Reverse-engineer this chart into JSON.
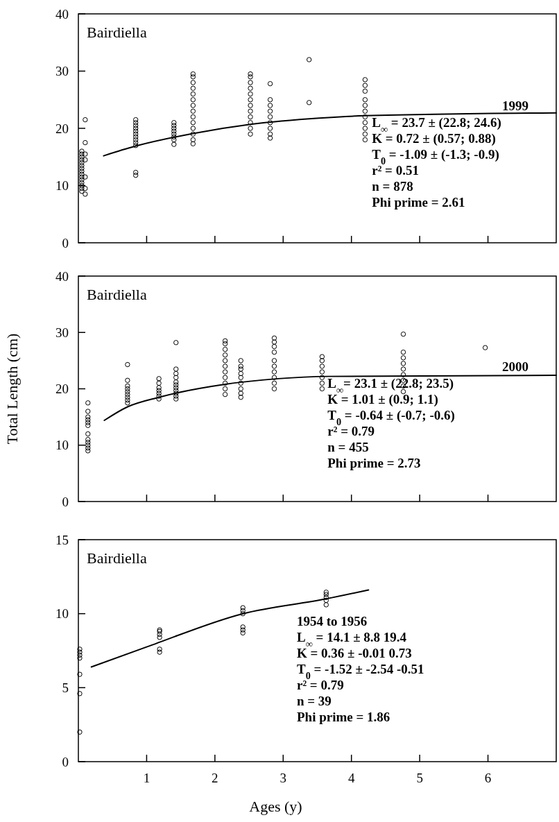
{
  "chart_data": [
    {
      "type": "scatter",
      "title": "Bairdiella",
      "xlim": [
        0,
        7
      ],
      "xticks": [
        {
          "value": 1,
          "label": null
        },
        {
          "value": 2,
          "label": null
        },
        {
          "value": 3,
          "label": null
        },
        {
          "value": 4,
          "label": null
        },
        {
          "value": 5,
          "label": null
        },
        {
          "value": 6,
          "label": null
        }
      ],
      "ylim": [
        0,
        40
      ],
      "yticks": [
        0,
        10,
        20,
        30,
        40
      ],
      "tick_labels": "y",
      "grid": false,
      "annotations": [
        "1999",
        "L$_{∞}$ =   23.7 ± (22.8; 24.6)",
        "K = 0.72 ± (0.57; 0.88)",
        "T$_{0}$ = -1.09 ± (-1.3; -0.9)",
        "r² = 0.51",
        "n = 878",
        "Phi prime = 2.61"
      ],
      "series": [
        {
          "marker": "circle",
          "color": "#000000",
          "x": [
            0.05,
            0.05,
            0.05,
            0.05,
            0.05,
            0.05,
            0.05,
            0.05,
            0.05,
            0.05,
            0.05,
            0.05,
            0.05,
            0.05,
            0.05,
            0.1,
            0.1,
            0.1,
            0.1,
            0.1,
            0.1,
            0.1,
            0.84,
            0.84,
            0.84,
            0.84,
            0.84,
            0.84,
            0.84,
            0.84,
            0.84,
            0.84,
            0.84,
            0.84,
            1.4,
            1.4,
            1.4,
            1.4,
            1.4,
            1.4,
            1.4,
            1.4,
            1.68,
            1.68,
            1.68,
            1.68,
            1.68,
            1.68,
            1.68,
            1.68,
            1.68,
            1.68,
            1.68,
            1.68,
            1.68,
            1.68,
            2.52,
            2.52,
            2.52,
            2.52,
            2.52,
            2.52,
            2.52,
            2.52,
            2.52,
            2.52,
            2.52,
            2.52,
            2.81,
            2.81,
            2.81,
            2.81,
            2.81,
            2.81,
            2.81,
            2.81,
            2.81,
            3.38,
            3.38,
            4.2,
            4.2,
            4.2,
            4.2,
            4.2,
            4.2,
            4.2,
            4.2,
            4.2,
            4.2,
            4.2
          ],
          "values": [
            9,
            9.5,
            10,
            10.5,
            11,
            11.5,
            12,
            12.5,
            13,
            13.5,
            14,
            14.5,
            15,
            15.5,
            16,
            8.5,
            9.5,
            11.5,
            14.5,
            15.5,
            17.5,
            21.5,
            11.8,
            12.3,
            17,
            17.5,
            18,
            18.5,
            19,
            19.5,
            20,
            20.5,
            21,
            21.5,
            17.2,
            18,
            18.5,
            19,
            19.5,
            20,
            20.5,
            21,
            17.3,
            18,
            19,
            20,
            21,
            22,
            23,
            24,
            25,
            26,
            27,
            28,
            29,
            29.5,
            19,
            20,
            21,
            22,
            23,
            24,
            25,
            26,
            27,
            28,
            29,
            29.5,
            18.3,
            19,
            20,
            21,
            22,
            23,
            24,
            25,
            27.8,
            24.5,
            32,
            18,
            19,
            20,
            21,
            22,
            23,
            24,
            25,
            26.5,
            27.5,
            28.5
          ]
        },
        {
          "type": "line",
          "marker": "none",
          "color": "#000000",
          "x": [
            0.37,
            0.84,
            1.68,
            2.52,
            3.53,
            4.2,
            7
          ],
          "values": [
            15.2,
            16.9,
            19.1,
            20.7,
            21.8,
            22.2,
            22.7
          ]
        }
      ]
    },
    {
      "type": "scatter",
      "title": "Bairdiella",
      "ylabel": "Total Length (cm)",
      "xlim": [
        0,
        7
      ],
      "xticks": [
        {
          "value": 1,
          "label": null
        },
        {
          "value": 2,
          "label": null
        },
        {
          "value": 3,
          "label": null
        },
        {
          "value": 4,
          "label": null
        },
        {
          "value": 5,
          "label": null
        },
        {
          "value": 6,
          "label": null
        }
      ],
      "ylim": [
        0,
        40
      ],
      "yticks": [
        0,
        10,
        20,
        30,
        40
      ],
      "tick_labels": "y",
      "grid": false,
      "annotations": [
        "2000",
        "L$_{∞}$= 23.1  ± (22.8; 23.5)",
        "K = 1.01 ± (0.9; 1.1)",
        "T$_{0}$ = -0.64 ± (-0.7; -0.6)",
        "r² = 0.79",
        "n = 455",
        "Phi prime = 2.73"
      ],
      "series": [
        {
          "marker": "circle",
          "color": "#000000",
          "x": [
            0.14,
            0.14,
            0.14,
            0.14,
            0.14,
            0.14,
            0.14,
            0.14,
            0.14,
            0.14,
            0.14,
            0.14,
            0.72,
            0.72,
            0.72,
            0.72,
            0.72,
            0.72,
            0.72,
            0.72,
            0.72,
            1.18,
            1.18,
            1.18,
            1.18,
            1.18,
            1.18,
            1.18,
            1.43,
            1.43,
            1.43,
            1.43,
            1.43,
            1.43,
            1.43,
            1.43,
            1.43,
            1.43,
            1.43,
            2.15,
            2.15,
            2.15,
            2.15,
            2.15,
            2.15,
            2.15,
            2.15,
            2.15,
            2.15,
            2.15,
            2.38,
            2.38,
            2.38,
            2.38,
            2.38,
            2.38,
            2.38,
            2.38,
            2.38,
            2.87,
            2.87,
            2.87,
            2.87,
            2.87,
            2.87,
            2.87,
            2.87,
            2.87,
            2.87,
            3.57,
            3.57,
            3.57,
            3.57,
            3.57,
            3.57,
            3.57,
            4.76,
            4.76,
            4.76,
            4.76,
            4.76,
            4.76,
            4.76,
            4.76,
            4.76,
            5.96
          ],
          "values": [
            9,
            9.5,
            10,
            10.5,
            11,
            12,
            13.5,
            14,
            14.5,
            15,
            16,
            17.5,
            17.5,
            18,
            18.5,
            19,
            19.5,
            20,
            20.5,
            21.5,
            24.3,
            18.2,
            18.7,
            19.2,
            19.7,
            20.2,
            21,
            21.8,
            18.2,
            18.7,
            19.2,
            19.7,
            20.2,
            20.7,
            21.2,
            22,
            22.7,
            23.5,
            28.2,
            19,
            20,
            21,
            22,
            23,
            24,
            25,
            26,
            27,
            28,
            28.5,
            18.5,
            19.2,
            20,
            21,
            22,
            22.7,
            23.5,
            24,
            25,
            20,
            21,
            22,
            23,
            24,
            25,
            26.5,
            27.5,
            28.3,
            29,
            20,
            21,
            22,
            23,
            24,
            25,
            25.7,
            19.5,
            20.5,
            21.5,
            22.5,
            23.5,
            24.5,
            25.5,
            26.5,
            29.7,
            27.3
          ]
        },
        {
          "type": "line",
          "marker": "none",
          "color": "#000000",
          "x": [
            0.38,
            0.72,
            1.18,
            2.15,
            2.93,
            3.66,
            7
          ],
          "values": [
            14.4,
            16.8,
            18.5,
            20.8,
            21.8,
            22.2,
            22.4
          ]
        }
      ]
    },
    {
      "type": "scatter",
      "title": "Bairdiella",
      "xlabel": "Ages (y)",
      "xlim": [
        0,
        7
      ],
      "xticks": [
        1,
        2,
        3,
        4,
        5,
        6
      ],
      "ylim": [
        0,
        15
      ],
      "yticks": [
        0,
        5,
        10,
        15
      ],
      "grid": false,
      "annotations": [
        "1954 to 1956",
        "L$_{∞}$ = 14.1 ± 8.8 19.4",
        "K = 0.36 ± -0.01 0.73",
        "T$_{0}$ = -1.52 ± -2.54  -0.51",
        "r² = 0.79",
        "n = 39",
        "Phi prime = 1.86"
      ],
      "series": [
        {
          "marker": "circle",
          "color": "#000000",
          "x": [
            0.02,
            0.02,
            0.02,
            0.02,
            0.02,
            0.02,
            0.02,
            1.19,
            1.19,
            1.19,
            1.19,
            1.19,
            1.19,
            2.41,
            2.41,
            2.41,
            2.41,
            2.41,
            2.41,
            3.63,
            3.63,
            3.63,
            3.63,
            3.63
          ],
          "values": [
            2,
            4.6,
            5.9,
            7,
            7.2,
            7.4,
            7.6,
            8.4,
            8.6,
            8.8,
            8.9,
            7.4,
            7.6,
            10,
            10.2,
            10.4,
            8.7,
            8.9,
            9.1,
            10.6,
            10.9,
            11.1,
            11.3,
            11.45
          ]
        },
        {
          "type": "line",
          "marker": "none",
          "color": "#000000",
          "x": [
            0.19,
            1,
            2.41,
            3.63,
            4.25
          ],
          "values": [
            6.4,
            7.75,
            10,
            11,
            11.6
          ]
        }
      ]
    }
  ]
}
